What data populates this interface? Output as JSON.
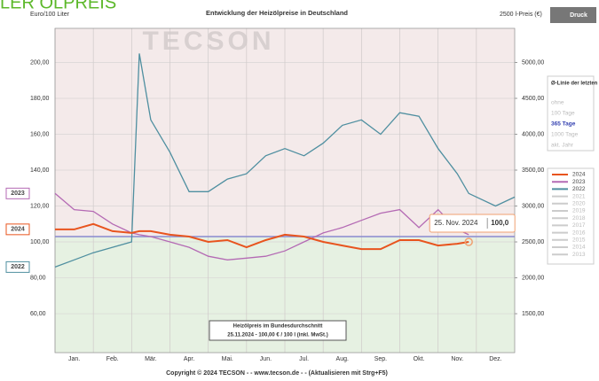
{
  "header_fragment": "LER ÖLPREIS",
  "button": "Druck",
  "chart_data": {
    "type": "line",
    "title": "Entwicklung der Heizölpreise in Deutschland",
    "y_label": "Euro/100 Liter",
    "y2_label": "2500 l-Preis (€)",
    "watermark": "TECSON",
    "months": [
      "Jan.",
      "Feb.",
      "Mär.",
      "Apr.",
      "Mai.",
      "Jun.",
      "Jul.",
      "Aug.",
      "Sep.",
      "Okt.",
      "Nov.",
      "Dez."
    ],
    "xlim": [
      0,
      12
    ],
    "x": [
      0,
      0.5,
      1,
      1.5,
      2,
      2.2,
      2.5,
      3,
      3.5,
      4,
      4.5,
      5,
      5.5,
      6,
      6.5,
      7,
      7.5,
      8,
      8.5,
      9,
      9.5,
      10,
      10.5,
      10.8,
      11.5,
      12
    ],
    "series": [
      {
        "name": "2022",
        "color": "#4f8fa0",
        "values": [
          86,
          90,
          94,
          97,
          100,
          205,
          168,
          150,
          128,
          128,
          135,
          138,
          148,
          152,
          148,
          155,
          165,
          168,
          160,
          172,
          170,
          152,
          138,
          127,
          120,
          125
        ]
      },
      {
        "name": "2023",
        "color": "#b46ab4",
        "values": [
          127,
          118,
          117,
          110,
          105,
          104,
          103,
          100,
          97,
          92,
          90,
          91,
          92,
          95,
          100,
          105,
          108,
          112,
          116,
          118,
          108,
          118,
          107,
          104,
          null,
          null
        ]
      },
      {
        "name": "2024",
        "color": "#e8541e",
        "values": [
          107,
          107,
          110,
          106,
          105,
          106,
          106,
          104,
          103,
          100,
          101,
          97,
          101,
          104,
          103,
          100,
          98,
          96,
          96,
          101,
          101,
          98,
          99,
          100,
          null,
          null
        ]
      }
    ],
    "average_value": 103,
    "average_color": "#8a8ad0",
    "ylim": [
      38.3,
      219
    ],
    "yticks": [
      {
        "value": 60,
        "label": "60,00"
      },
      {
        "value": 80,
        "label": "80,00"
      },
      {
        "value": 100,
        "label": "100,00"
      },
      {
        "value": 120,
        "label": "120,00"
      },
      {
        "value": 140,
        "label": "140,00"
      },
      {
        "value": 160,
        "label": "160,00"
      },
      {
        "value": 180,
        "label": "180,00"
      },
      {
        "value": 200,
        "label": "200,00"
      }
    ],
    "y2lim": [
      957.5,
      5475
    ],
    "y2ticks": [
      {
        "value": 1500,
        "label": "1500,00"
      },
      {
        "value": 2000,
        "label": "2000,00"
      },
      {
        "value": 2500,
        "label": "2500,00"
      },
      {
        "value": 3000,
        "label": "3000,00"
      },
      {
        "value": 3500,
        "label": "3500,00"
      },
      {
        "value": 4000,
        "label": "4000,00"
      },
      {
        "value": 4500,
        "label": "4500,00"
      },
      {
        "value": 5000,
        "label": "5000,00"
      }
    ],
    "grid": true,
    "tooltip": {
      "date": "25. Nov. 2024",
      "value": 100,
      "value_label": "100,0"
    },
    "avg_panel": {
      "title": "Ø-Linie der letzten",
      "options": [
        "ohne",
        "100 Tage",
        "365 Tage",
        "1000 Tage",
        "akt. Jahr"
      ],
      "selected": 2
    },
    "inactive_years": [
      "2021",
      "2020",
      "2019",
      "2018",
      "2017",
      "2016",
      "2015",
      "2014",
      "2013"
    ],
    "info_box": [
      "Heizölpreis im Bundesdurchschnitt",
      "25.11.2024 - 100,00 € / 100 l (inkl. MwSt.)"
    ],
    "footer": "Copyright © 2024 TECSON - - www.tecson.de - - (Aktualisieren mit Strg+F5)"
  }
}
